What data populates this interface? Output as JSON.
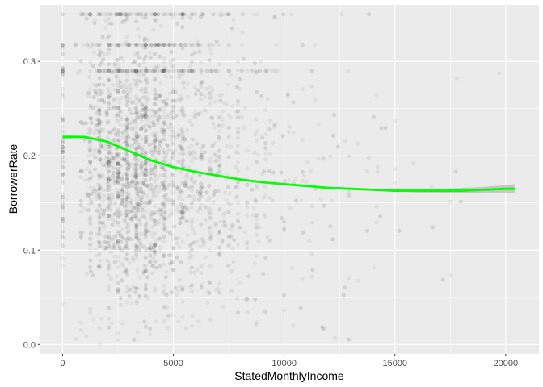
{
  "chart_data": {
    "type": "scatter",
    "title": "",
    "xlabel": "StatedMonthlyIncome",
    "ylabel": "BorrowerRate",
    "xlim": [
      -1000,
      21500
    ],
    "ylim": [
      -0.01,
      0.36
    ],
    "x_ticks": [
      0,
      5000,
      10000,
      15000,
      20000
    ],
    "x_tick_labels": [
      "0",
      "5000",
      "10000",
      "15000",
      "20000"
    ],
    "y_ticks": [
      0.0,
      0.1,
      0.2,
      0.3
    ],
    "y_tick_labels": [
      "0.0",
      "0.1",
      "0.2",
      "0.3"
    ],
    "grid": true,
    "background": "#ebebeb",
    "grid_color": "#ffffff",
    "point_color": "#000000",
    "point_alpha": 0.05,
    "smooth_color": "#00ff00",
    "ribbon_color": "#999999",
    "points_note_count": 3200,
    "series": [
      {
        "x": [
          0,
          1000,
          2000,
          3000,
          4000,
          5000,
          6000,
          7000,
          8000,
          9000,
          10000,
          11000,
          12000,
          13000,
          14000,
          15000,
          16000,
          17000,
          18000,
          19000,
          20000,
          20400
        ],
        "y": [
          0.22,
          0.22,
          0.215,
          0.205,
          0.195,
          0.188,
          0.183,
          0.179,
          0.175,
          0.172,
          0.17,
          0.168,
          0.166,
          0.165,
          0.164,
          0.163,
          0.163,
          0.163,
          0.163,
          0.164,
          0.165,
          0.165
        ],
        "ribbon_upper": [
          0.222,
          0.221,
          0.216,
          0.206,
          0.196,
          0.189,
          0.184,
          0.18,
          0.176,
          0.173,
          0.171,
          0.169,
          0.167,
          0.166,
          0.165,
          0.164,
          0.165,
          0.165,
          0.166,
          0.167,
          0.169,
          0.17
        ],
        "ribbon_lower": [
          0.218,
          0.219,
          0.214,
          0.204,
          0.194,
          0.187,
          0.182,
          0.178,
          0.174,
          0.171,
          0.169,
          0.167,
          0.165,
          0.164,
          0.163,
          0.162,
          0.161,
          0.161,
          0.16,
          0.161,
          0.161,
          0.16
        ]
      }
    ]
  }
}
